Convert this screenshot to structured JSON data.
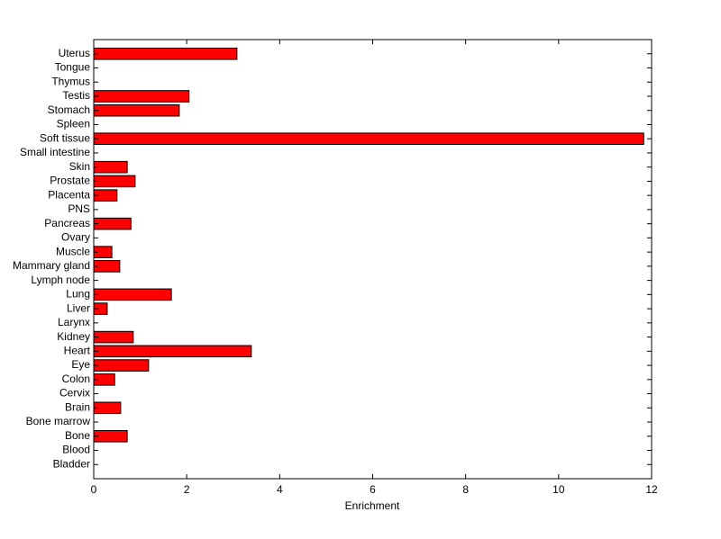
{
  "chart_data": {
    "type": "barh",
    "xlabel": "Enrichment",
    "categories": [
      "Bladder",
      "Blood",
      "Bone",
      "Bone marrow",
      "Brain",
      "Cervix",
      "Colon",
      "Eye",
      "Heart",
      "Kidney",
      "Larynx",
      "Liver",
      "Lung",
      "Lymph node",
      "Mammary gland",
      "Muscle",
      "Ovary",
      "Pancreas",
      "PNS",
      "Placenta",
      "Prostate",
      "Skin",
      "Small intestine",
      "Soft tissue",
      "Spleen",
      "Stomach",
      "Testis",
      "Thymus",
      "Tongue",
      "Uterus"
    ],
    "values": [
      0,
      0,
      0.72,
      0,
      0.58,
      0,
      0.45,
      1.18,
      3.39,
      0.85,
      0,
      0.29,
      1.67,
      0,
      0.56,
      0.39,
      0,
      0.8,
      0,
      0.5,
      0.89,
      0.72,
      0,
      11.83,
      0,
      1.84,
      2.05,
      0,
      0,
      3.08
    ],
    "color": "#ff0000",
    "xlim": [
      0,
      12
    ],
    "xticks": [
      0,
      2,
      4,
      6,
      8,
      10,
      12
    ],
    "grid": false
  }
}
